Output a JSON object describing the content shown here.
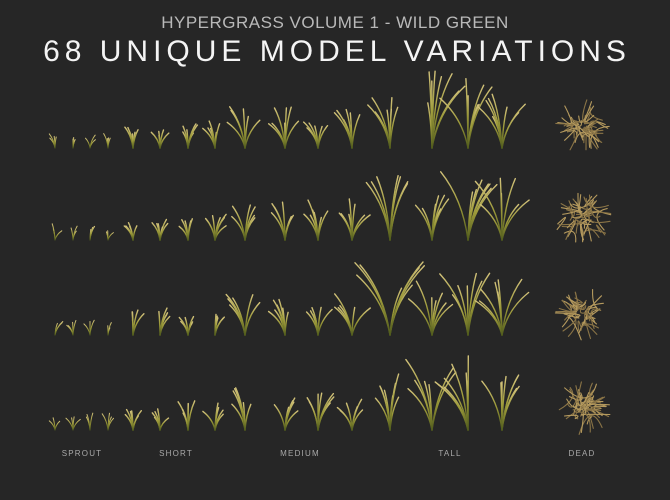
{
  "header": {
    "title": "HYPERGRASS VOLUME 1 - WILD GREEN",
    "headline": "68 UNIQUE MODEL VARIATIONS"
  },
  "groups": [
    {
      "label": "SPROUT"
    },
    {
      "label": "SHORT"
    },
    {
      "label": "MEDIUM"
    },
    {
      "label": "TALL"
    },
    {
      "label": "DEAD"
    }
  ]
}
